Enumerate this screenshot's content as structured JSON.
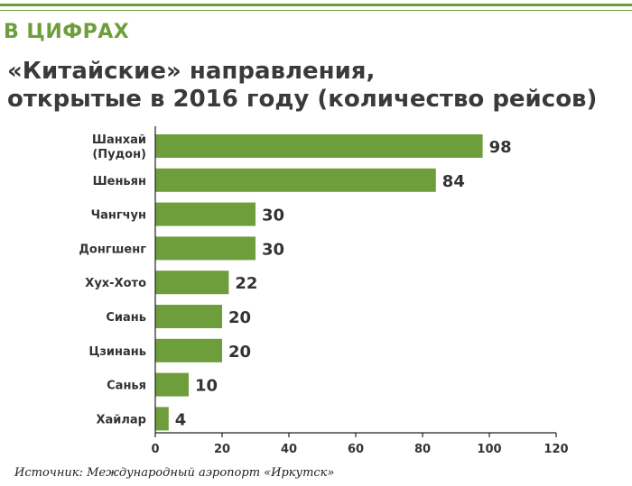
{
  "header": {
    "section_label": "В ЦИФРАХ",
    "title_line1": "«Китайские» направления,",
    "title_line2": "открытые в 2016 году (количество рейсов)"
  },
  "source": "Источник: Международный аэропорт «Иркутск»",
  "colors": {
    "accent": "#6e9e3c",
    "bar": "#6e9e3c",
    "text": "#333333",
    "axis": "#222222"
  },
  "chart_data": {
    "type": "bar",
    "orientation": "horizontal",
    "title": "«Китайские» направления, открытые в 2016 году (количество рейсов)",
    "xlabel": "",
    "ylabel": "",
    "categories": [
      [
        "Шанхай",
        "(Пудон)"
      ],
      [
        "Шеньян"
      ],
      [
        "Чангчун"
      ],
      [
        "Донгшенг"
      ],
      [
        "Хух-Хото"
      ],
      [
        "Сиань"
      ],
      [
        "Цзинань"
      ],
      [
        "Санья"
      ],
      [
        "Хайлар"
      ]
    ],
    "values": [
      98,
      84,
      30,
      30,
      22,
      20,
      20,
      10,
      4
    ],
    "xlim": [
      0,
      120
    ],
    "xticks": [
      0,
      20,
      40,
      60,
      80,
      100,
      120
    ],
    "grid": false
  }
}
